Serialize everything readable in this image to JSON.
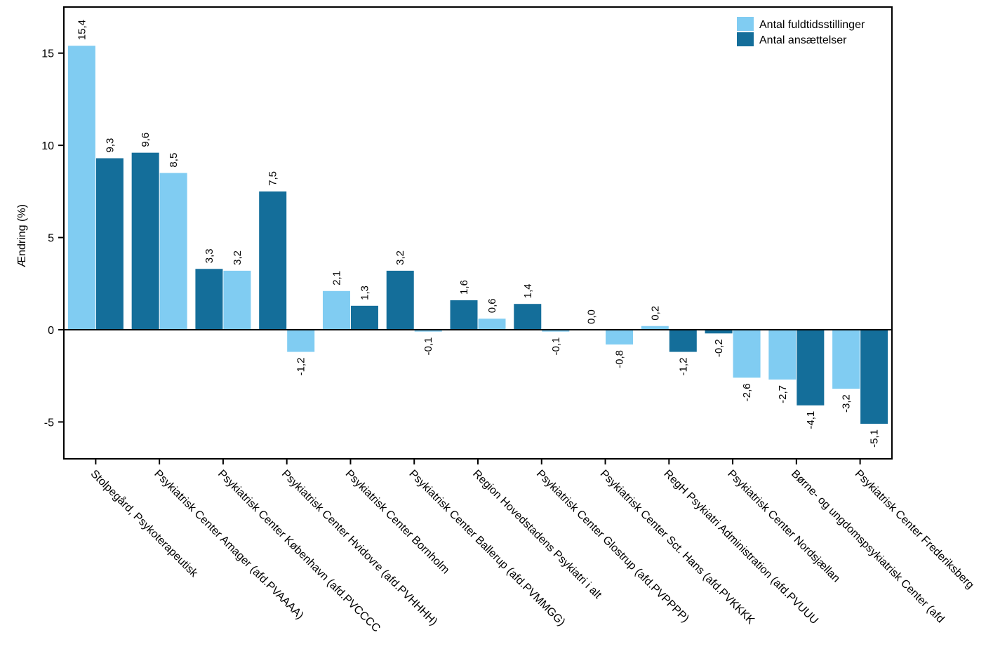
{
  "chart_data": {
    "type": "bar",
    "ylabel": "Ændring (%)",
    "ylim": [
      -7,
      17.5
    ],
    "yticks": [
      -5,
      0,
      5,
      10,
      15
    ],
    "ytick_labels": [
      "-5",
      "0",
      "5",
      "10",
      "15"
    ],
    "legend_position": "top-right",
    "categories": [
      "Stolpegård, Psykoterapeutisk",
      "Psykiatrisk Center Amager (afd.PVAAAA)",
      "Psykiatrisk Center København (afd.PVCCCC",
      "Psykiatrisk Center Hvidovre (afd.PVHHHH)",
      "Psykiatrisk Center Bornholm",
      "Psykiatrisk Center Ballerup (afd.PVMMGG)",
      "Region Hovedstadens Psykiatri i alt",
      "Psykiatrisk Center Glostrup (afd.PVPPPP)",
      "Psykiatrisk Center Sct. Hans (afd.PVKKKK",
      "RegH Psykiatri Administration (afd.PVUUU",
      "Psykiatrisk Center Nordsjællan",
      "Børne- og ungdomspsykiatrisk Center (afd",
      "Psykiatrisk Center Frederiksberg"
    ],
    "series": [
      {
        "name": "Antal fuldtidsstillinger",
        "color": "#80ccf2",
        "values": [
          15.4,
          8.5,
          3.2,
          -1.2,
          2.1,
          -0.1,
          0.6,
          -0.1,
          -0.8,
          0.2,
          -2.6,
          -2.7,
          -3.2
        ],
        "labels": [
          "15,4",
          "8,5",
          "3,2",
          "-1,2",
          "2,1",
          "-0,1",
          "0,6",
          "-0,1",
          "-0,8",
          "0,2",
          "-2,6",
          "-2,7",
          "-3,2"
        ]
      },
      {
        "name": "Antal ansættelser",
        "color": "#146e9a",
        "values": [
          9.3,
          9.6,
          3.3,
          7.5,
          1.3,
          3.2,
          1.6,
          1.4,
          0.0,
          -1.2,
          -0.2,
          -4.1,
          -5.1
        ],
        "labels": [
          "9,3",
          "9,6",
          "3,3",
          "7,5",
          "1,3",
          "3,2",
          "1,6",
          "1,4",
          "0,0",
          "-1,2",
          "-0,2",
          "-4,1",
          "-5,1"
        ]
      }
    ],
    "bar_order": [
      [
        "Antal fuldtidsstillinger",
        "Antal ansættelser"
      ],
      [
        "Antal ansættelser",
        "Antal fuldtidsstillinger"
      ],
      [
        "Antal ansættelser",
        "Antal fuldtidsstillinger"
      ],
      [
        "Antal ansættelser",
        "Antal fuldtidsstillinger"
      ],
      [
        "Antal fuldtidsstillinger",
        "Antal ansættelser"
      ],
      [
        "Antal ansættelser",
        "Antal fuldtidsstillinger"
      ],
      [
        "Antal ansættelser",
        "Antal fuldtidsstillinger"
      ],
      [
        "Antal ansættelser",
        "Antal fuldtidsstillinger"
      ],
      [
        "Antal ansættelser",
        "Antal fuldtidsstillinger"
      ],
      [
        "Antal fuldtidsstillinger",
        "Antal ansættelser"
      ],
      [
        "Antal ansættelser",
        "Antal fuldtidsstillinger"
      ],
      [
        "Antal fuldtidsstillinger",
        "Antal ansættelser"
      ],
      [
        "Antal fuldtidsstillinger",
        "Antal ansættelser"
      ]
    ]
  }
}
